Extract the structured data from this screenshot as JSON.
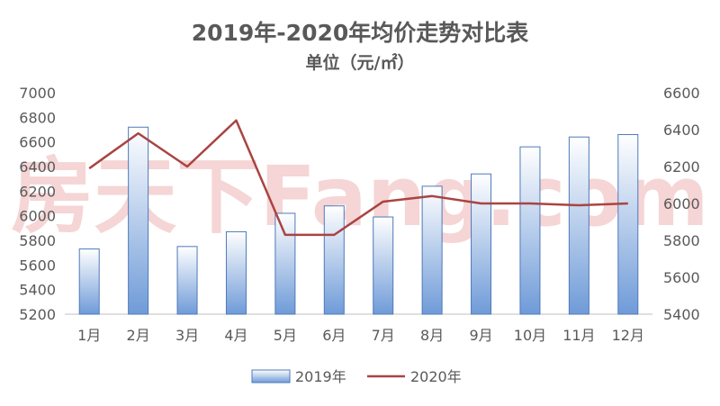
{
  "chart_data": {
    "type": "bar",
    "title": "2019年-2020年均价走势对比表",
    "subtitle": "单位（元/㎡）",
    "categories": [
      "1月",
      "2月",
      "3月",
      "4月",
      "5月",
      "6月",
      "7月",
      "8月",
      "9月",
      "10月",
      "11月",
      "12月"
    ],
    "series": [
      {
        "name": "2019年",
        "type": "bar",
        "axis": "left",
        "values": [
          5730,
          6720,
          5750,
          5870,
          6020,
          6080,
          5990,
          6240,
          6340,
          6560,
          6640,
          6660
        ]
      },
      {
        "name": "2020年",
        "type": "line",
        "axis": "right",
        "values": [
          6190,
          6380,
          6200,
          6450,
          5830,
          5830,
          6010,
          6040,
          6000,
          6000,
          5990,
          6000
        ]
      }
    ],
    "y_left": {
      "min": 5200,
      "max": 7000,
      "step": 200,
      "ticks": [
        "5200",
        "5400",
        "5600",
        "5800",
        "6000",
        "6200",
        "6400",
        "6600",
        "6800",
        "7000"
      ]
    },
    "y_right": {
      "min": 5400,
      "max": 6600,
      "step": 200,
      "ticks": [
        "5400",
        "5600",
        "5800",
        "6000",
        "6200",
        "6400",
        "6600"
      ]
    },
    "grid": false,
    "legend_position": "bottom",
    "watermark": "房天下Fang.com",
    "colors": {
      "bar_top": "#ffffff",
      "bar_bottom": "#6f9bd8",
      "bar_stroke": "#4f79b9",
      "line": "#a94442",
      "text": "#595959",
      "axis": "#bfbfbf"
    }
  }
}
